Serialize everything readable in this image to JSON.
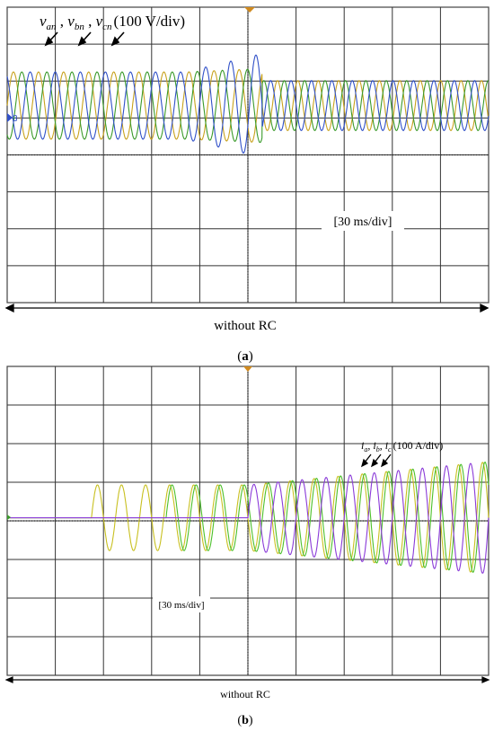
{
  "chart_data": [
    {
      "type": "line",
      "panel": "(a)",
      "signal_labels": [
        "v_an",
        "v_bn",
        "v_cn"
      ],
      "signal_label_text": {
        "v": "v",
        "subs": [
          "an",
          "bn",
          "cn"
        ],
        "scale": "(100 V/div)"
      },
      "time_scale": "[30 ms/div]",
      "condition": "without RC",
      "caption_letter": "a",
      "grid": true,
      "divisions": {
        "x": 10,
        "y": 8
      },
      "transient_at_div": 5.3,
      "series": [
        {
          "name": "v_an",
          "color": "#c8a21e",
          "amplitude_div_before": 1.75,
          "amplitude_div_after": 1.3,
          "cycles_per_div": 2.0,
          "phase_deg": 0
        },
        {
          "name": "v_bn",
          "color": "#3a9a2a",
          "amplitude_div_before": 1.75,
          "amplitude_div_after": 1.3,
          "cycles_per_div": 2.0,
          "phase_deg": -120
        },
        {
          "name": "v_cn",
          "color": "#3050c8",
          "amplitude_div_before": 1.75,
          "amplitude_div_after": 1.3,
          "cycles_per_div": 2.0,
          "phase_deg": 120
        }
      ]
    },
    {
      "type": "line",
      "panel": "(b)",
      "signal_labels": [
        "i_a",
        "i_b",
        "i_c"
      ],
      "signal_label_text": {
        "v": "i",
        "subs": [
          "a",
          "b",
          "c"
        ],
        "scale": "(100 A/div)"
      },
      "time_scale": "[30 ms/div]",
      "condition": "without RC",
      "caption_letter": "b",
      "grid": true,
      "divisions": {
        "x": 10,
        "y": 8
      },
      "series": [
        {
          "name": "i_a",
          "color": "#c8c020",
          "start_div": 1.75,
          "amplitude_div_initial": 0.85,
          "amplitude_div_final": 1.45,
          "cycles_per_div": 2.0,
          "phase_deg": 0
        },
        {
          "name": "i_b",
          "color": "#4cc02a",
          "start_div": 3.3,
          "amplitude_div_initial": 0.85,
          "amplitude_div_final": 1.45,
          "cycles_per_div": 2.0,
          "phase_deg": -120
        },
        {
          "name": "i_c",
          "color": "#8a3ad8",
          "start_div": 5.0,
          "amplitude_div_initial": 0.85,
          "amplitude_div_final": 1.45,
          "cycles_per_div": 2.0,
          "phase_deg": 120
        }
      ]
    }
  ]
}
